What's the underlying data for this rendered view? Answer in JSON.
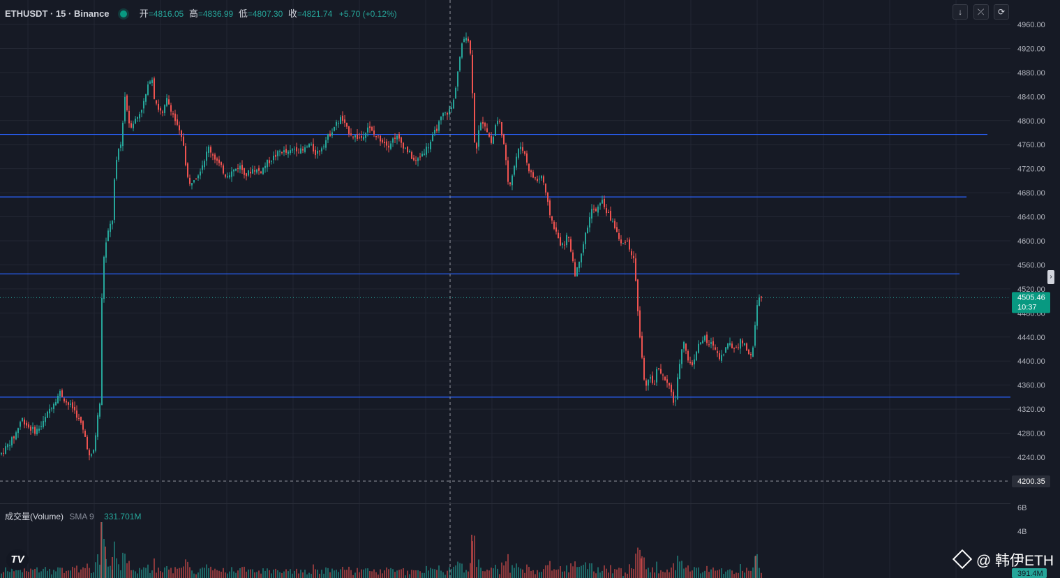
{
  "header": {
    "symbol": "ETHUSDT · 15 · Binance",
    "open_label": "开",
    "open": "=4816.05",
    "high_label": "高",
    "high": "=4836.99",
    "low_label": "低",
    "low": "=4807.30",
    "close_label": "收",
    "close": "=4821.74",
    "change": "+5.70 (+0.12%)"
  },
  "toolbar": {
    "down_icon": "↓",
    "collapse_icon": "⤫",
    "fullscreen_icon": "⟳"
  },
  "volume_legend": {
    "title": "成交量(Volume)",
    "sma": "SMA 9",
    "value": "331.701M"
  },
  "watermark": {
    "text": "@ 韩伊ETH"
  },
  "logo_text": "TV",
  "colors": {
    "background": "#161a25",
    "grid": "#232733",
    "up": "#26a69a",
    "down": "#ef5350",
    "hline": "#2962ff",
    "price_tag": "#089981",
    "axis_text": "#b2b5be"
  },
  "chart_data": {
    "type": "candlestick",
    "symbol": "ETHUSDT",
    "interval": "15",
    "exchange": "Binance",
    "price_axis": {
      "ticks": [
        4960,
        4920,
        4880,
        4840,
        4800,
        4760,
        4720,
        4680,
        4640,
        4600,
        4560,
        4520,
        4480,
        4440,
        4400,
        4360,
        4320,
        4280,
        4240
      ],
      "tick_labels": [
        "4960.00",
        "4920.00",
        "4880.00",
        "4840.00",
        "4800.00",
        "4760.00",
        "4720.00",
        "4680.00",
        "4640.00",
        "4600.00",
        "4560.00",
        "4520.00",
        "4480.00",
        "4440.00",
        "4400.00",
        "4360.00",
        "4320.00",
        "4280.00",
        "4240.00"
      ],
      "range": [
        4185,
        4975
      ]
    },
    "volume_axis": {
      "ticks": [
        "6B",
        "4B"
      ]
    },
    "current_price": {
      "value": 4505.46,
      "label": "4505.46",
      "countdown": "10:37"
    },
    "crosshair_price": {
      "value": 4200.35,
      "label": "4200.35"
    },
    "horizontal_levels": [
      4777,
      4673,
      4545,
      4340
    ],
    "volume_last": "391.4M",
    "price_path": [
      [
        0,
        4245
      ],
      [
        20,
        4275
      ],
      [
        30,
        4305
      ],
      [
        40,
        4290
      ],
      [
        50,
        4283
      ],
      [
        60,
        4295
      ],
      [
        70,
        4320
      ],
      [
        85,
        4348
      ],
      [
        95,
        4330
      ],
      [
        105,
        4320
      ],
      [
        115,
        4295
      ],
      [
        122,
        4270
      ],
      [
        128,
        4235
      ],
      [
        134,
        4255
      ],
      [
        138,
        4300
      ],
      [
        142,
        4330
      ],
      [
        146,
        4560
      ],
      [
        150,
        4590
      ],
      [
        155,
        4620
      ],
      [
        160,
        4635
      ],
      [
        163,
        4700
      ],
      [
        168,
        4750
      ],
      [
        172,
        4760
      ],
      [
        178,
        4840
      ],
      [
        185,
        4790
      ],
      [
        192,
        4800
      ],
      [
        198,
        4810
      ],
      [
        205,
        4830
      ],
      [
        212,
        4860
      ],
      [
        216,
        4880
      ],
      [
        220,
        4840
      ],
      [
        226,
        4820
      ],
      [
        232,
        4810
      ],
      [
        238,
        4835
      ],
      [
        244,
        4820
      ],
      [
        250,
        4800
      ],
      [
        256,
        4780
      ],
      [
        262,
        4760
      ],
      [
        266,
        4720
      ],
      [
        270,
        4690
      ],
      [
        276,
        4705
      ],
      [
        282,
        4710
      ],
      [
        290,
        4730
      ],
      [
        298,
        4755
      ],
      [
        306,
        4740
      ],
      [
        314,
        4725
      ],
      [
        322,
        4710
      ],
      [
        332,
        4715
      ],
      [
        342,
        4725
      ],
      [
        352,
        4710
      ],
      [
        362,
        4720
      ],
      [
        372,
        4715
      ],
      [
        382,
        4730
      ],
      [
        392,
        4740
      ],
      [
        402,
        4750
      ],
      [
        412,
        4745
      ],
      [
        422,
        4755
      ],
      [
        432,
        4748
      ],
      [
        442,
        4760
      ],
      [
        452,
        4745
      ],
      [
        462,
        4760
      ],
      [
        470,
        4775
      ],
      [
        478,
        4790
      ],
      [
        488,
        4805
      ],
      [
        496,
        4785
      ],
      [
        506,
        4775
      ],
      [
        516,
        4770
      ],
      [
        526,
        4790
      ],
      [
        536,
        4775
      ],
      [
        546,
        4768
      ],
      [
        556,
        4760
      ],
      [
        566,
        4775
      ],
      [
        576,
        4760
      ],
      [
        586,
        4745
      ],
      [
        594,
        4730
      ],
      [
        604,
        4745
      ],
      [
        614,
        4760
      ],
      [
        624,
        4785
      ],
      [
        634,
        4810
      ],
      [
        642,
        4815
      ],
      [
        648,
        4825
      ],
      [
        654,
        4875
      ],
      [
        660,
        4920
      ],
      [
        666,
        4945
      ],
      [
        672,
        4930
      ],
      [
        676,
        4850
      ],
      [
        680,
        4740
      ],
      [
        686,
        4790
      ],
      [
        692,
        4800
      ],
      [
        698,
        4780
      ],
      [
        704,
        4760
      ],
      [
        710,
        4800
      ],
      [
        716,
        4795
      ],
      [
        722,
        4750
      ],
      [
        728,
        4690
      ],
      [
        734,
        4715
      ],
      [
        740,
        4745
      ],
      [
        746,
        4760
      ],
      [
        752,
        4740
      ],
      [
        758,
        4715
      ],
      [
        764,
        4705
      ],
      [
        770,
        4700
      ],
      [
        776,
        4710
      ],
      [
        782,
        4670
      ],
      [
        788,
        4640
      ],
      [
        794,
        4620
      ],
      [
        800,
        4600
      ],
      [
        806,
        4590
      ],
      [
        812,
        4610
      ],
      [
        818,
        4580
      ],
      [
        824,
        4540
      ],
      [
        830,
        4575
      ],
      [
        836,
        4600
      ],
      [
        842,
        4630
      ],
      [
        848,
        4655
      ],
      [
        854,
        4645
      ],
      [
        860,
        4670
      ],
      [
        866,
        4655
      ],
      [
        872,
        4640
      ],
      [
        878,
        4630
      ],
      [
        884,
        4610
      ],
      [
        890,
        4590
      ],
      [
        896,
        4605
      ],
      [
        902,
        4585
      ],
      [
        908,
        4565
      ],
      [
        912,
        4500
      ],
      [
        916,
        4440
      ],
      [
        920,
        4390
      ],
      [
        924,
        4355
      ],
      [
        930,
        4370
      ],
      [
        936,
        4360
      ],
      [
        942,
        4395
      ],
      [
        948,
        4375
      ],
      [
        954,
        4365
      ],
      [
        960,
        4350
      ],
      [
        966,
        4325
      ],
      [
        972,
        4390
      ],
      [
        978,
        4440
      ],
      [
        984,
        4405
      ],
      [
        990,
        4390
      ],
      [
        996,
        4415
      ],
      [
        1002,
        4430
      ],
      [
        1008,
        4440
      ],
      [
        1014,
        4425
      ],
      [
        1020,
        4430
      ],
      [
        1026,
        4415
      ],
      [
        1032,
        4405
      ],
      [
        1038,
        4420
      ],
      [
        1044,
        4430
      ],
      [
        1050,
        4420
      ],
      [
        1056,
        4425
      ],
      [
        1062,
        4435
      ],
      [
        1068,
        4420
      ],
      [
        1074,
        4410
      ],
      [
        1078,
        4420
      ],
      [
        1082,
        4470
      ],
      [
        1086,
        4510
      ],
      [
        1090,
        4505
      ]
    ]
  }
}
